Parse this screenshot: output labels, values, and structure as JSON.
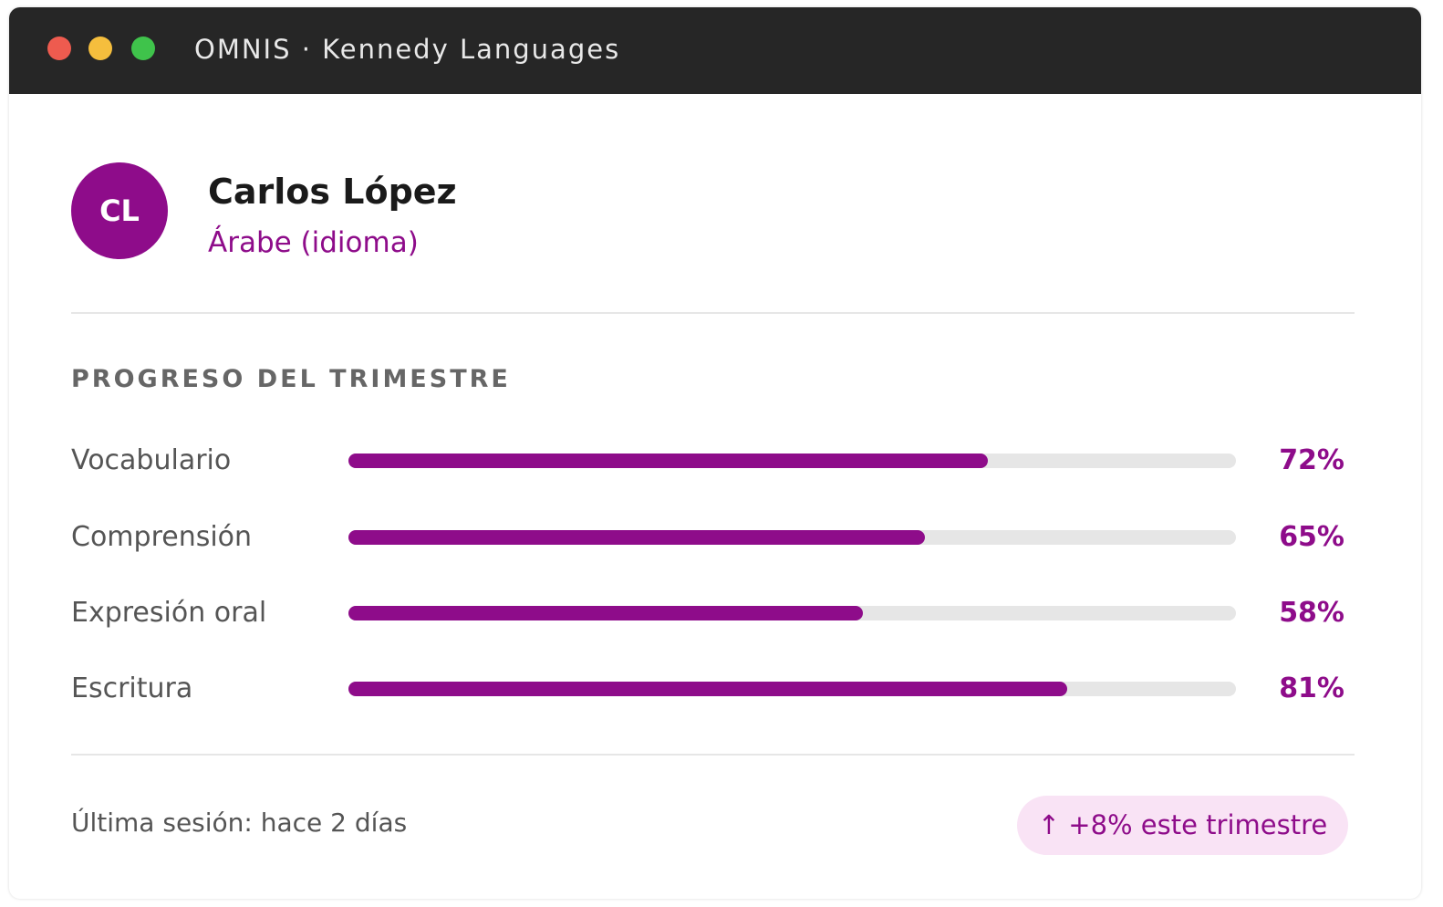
{
  "window": {
    "title": "OMNIS · Kennedy Languages"
  },
  "profile": {
    "initials": "CL",
    "name": "Carlos López",
    "subtitle": "Árabe (idioma)"
  },
  "progress": {
    "title": "PROGRESO DEL TRIMESTRE",
    "skills": [
      {
        "name": "Vocabulario",
        "value": 72,
        "value_label": "72%"
      },
      {
        "name": "Comprensión",
        "value": 65,
        "value_label": "65%"
      },
      {
        "name": "Expresión oral",
        "value": 58,
        "value_label": "58%"
      },
      {
        "name": "Escritura",
        "value": 81,
        "value_label": "81%"
      }
    ]
  },
  "footer": {
    "last_session": "Última sesión: hace 2 días",
    "badge": "↑ +8% este trimestre"
  }
}
